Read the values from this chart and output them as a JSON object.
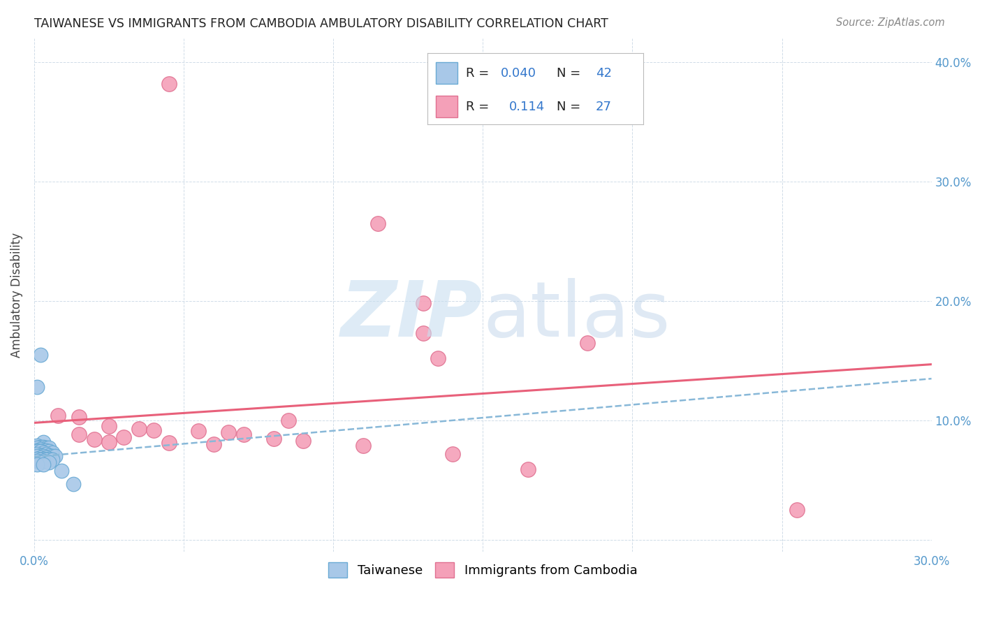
{
  "title": "TAIWANESE VS IMMIGRANTS FROM CAMBODIA AMBULATORY DISABILITY CORRELATION CHART",
  "source": "Source: ZipAtlas.com",
  "ylabel": "Ambulatory Disability",
  "xlim": [
    0.0,
    0.3
  ],
  "ylim": [
    -0.01,
    0.42
  ],
  "xticks": [
    0.0,
    0.05,
    0.1,
    0.15,
    0.2,
    0.25,
    0.3
  ],
  "xtick_labels": [
    "0.0%",
    "",
    "",
    "",
    "",
    "",
    "30.0%"
  ],
  "yticks": [
    0.0,
    0.1,
    0.2,
    0.3,
    0.4
  ],
  "ytick_labels_right": [
    "",
    "10.0%",
    "20.0%",
    "30.0%",
    "40.0%"
  ],
  "blue_color": "#a8c8e8",
  "pink_color": "#f4a0b8",
  "blue_edge_color": "#6aaad4",
  "pink_edge_color": "#e07090",
  "blue_line_color": "#88b8d8",
  "pink_line_color": "#e8607a",
  "blue_scatter": [
    [
      0.002,
      0.155
    ],
    [
      0.001,
      0.128
    ],
    [
      0.003,
      0.082
    ],
    [
      0.001,
      0.079
    ],
    [
      0.002,
      0.078
    ],
    [
      0.003,
      0.078
    ],
    [
      0.004,
      0.077
    ],
    [
      0.001,
      0.077
    ],
    [
      0.005,
      0.077
    ],
    [
      0.002,
      0.076
    ],
    [
      0.001,
      0.075
    ],
    [
      0.003,
      0.075
    ],
    [
      0.004,
      0.075
    ],
    [
      0.001,
      0.074
    ],
    [
      0.002,
      0.074
    ],
    [
      0.005,
      0.074
    ],
    [
      0.003,
      0.073
    ],
    [
      0.006,
      0.073
    ],
    [
      0.001,
      0.072
    ],
    [
      0.004,
      0.072
    ],
    [
      0.002,
      0.071
    ],
    [
      0.005,
      0.071
    ],
    [
      0.001,
      0.07
    ],
    [
      0.003,
      0.07
    ],
    [
      0.006,
      0.07
    ],
    [
      0.007,
      0.07
    ],
    [
      0.002,
      0.069
    ],
    [
      0.004,
      0.069
    ],
    [
      0.001,
      0.068
    ],
    [
      0.003,
      0.068
    ],
    [
      0.005,
      0.068
    ],
    [
      0.002,
      0.067
    ],
    [
      0.004,
      0.067
    ],
    [
      0.006,
      0.067
    ],
    [
      0.001,
      0.066
    ],
    [
      0.003,
      0.066
    ],
    [
      0.002,
      0.065
    ],
    [
      0.005,
      0.065
    ],
    [
      0.001,
      0.063
    ],
    [
      0.003,
      0.063
    ],
    [
      0.009,
      0.058
    ],
    [
      0.013,
      0.047
    ]
  ],
  "pink_scatter": [
    [
      0.045,
      0.382
    ],
    [
      0.115,
      0.265
    ],
    [
      0.13,
      0.198
    ],
    [
      0.13,
      0.173
    ],
    [
      0.135,
      0.152
    ],
    [
      0.008,
      0.104
    ],
    [
      0.015,
      0.103
    ],
    [
      0.085,
      0.1
    ],
    [
      0.025,
      0.095
    ],
    [
      0.035,
      0.093
    ],
    [
      0.04,
      0.092
    ],
    [
      0.055,
      0.091
    ],
    [
      0.065,
      0.09
    ],
    [
      0.015,
      0.088
    ],
    [
      0.07,
      0.088
    ],
    [
      0.03,
      0.086
    ],
    [
      0.08,
      0.085
    ],
    [
      0.02,
      0.084
    ],
    [
      0.09,
      0.083
    ],
    [
      0.025,
      0.082
    ],
    [
      0.045,
      0.081
    ],
    [
      0.06,
      0.08
    ],
    [
      0.11,
      0.079
    ],
    [
      0.185,
      0.165
    ],
    [
      0.14,
      0.072
    ],
    [
      0.255,
      0.025
    ],
    [
      0.165,
      0.059
    ]
  ],
  "blue_trend": [
    0.0,
    0.0695,
    0.3,
    0.135
  ],
  "pink_trend": [
    0.0,
    0.098,
    0.3,
    0.147
  ],
  "grid_color": "#d0dce8",
  "tick_color": "#5599cc",
  "title_color": "#222222",
  "source_color": "#888888",
  "ylabel_color": "#444444"
}
